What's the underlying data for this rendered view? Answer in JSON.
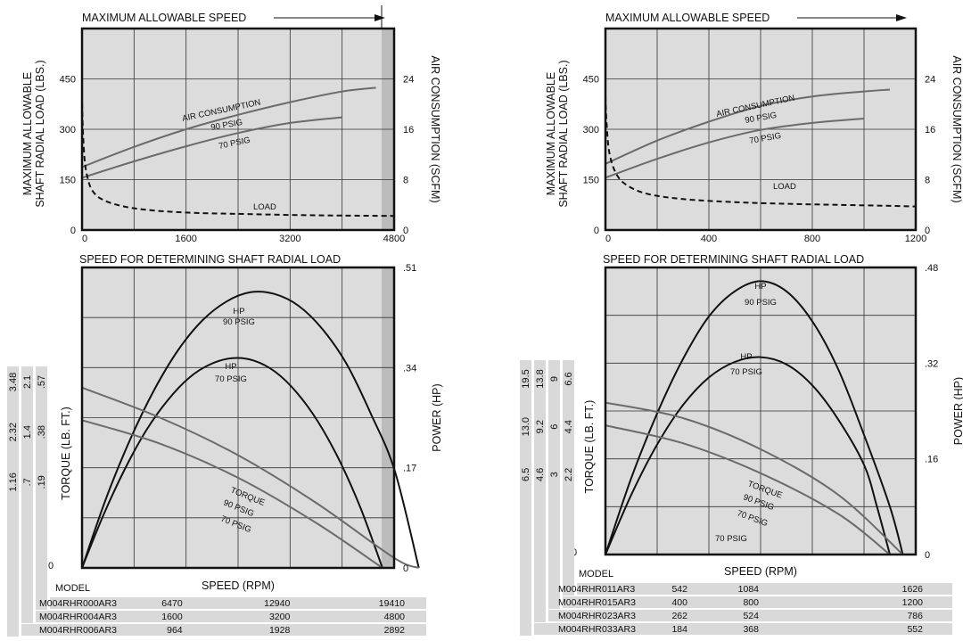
{
  "colors": {
    "plot_bg": "#dcdcdc",
    "gray_zone": "#bcbcbc",
    "grid": "#333333",
    "curve": "#6b6b6b",
    "curve_dark": "#111111",
    "table_bg": "#d9d9d9",
    "ink": "#111111"
  },
  "panels": [
    {
      "top": {
        "header": "MAXIMUM ALLOWABLE SPEED",
        "ylabel_left": [
          "MAXIMUM ALLOWABLE",
          "SHAFT RADIAL LOAD (LBS.)"
        ],
        "ylabel_right": "AIR CONSUMPTION (SCFM)",
        "left_ticks": [
          "0",
          "150",
          "300",
          "450"
        ],
        "right_ticks": [
          "0",
          "8",
          "16",
          "24"
        ],
        "x_ticks": [
          "0",
          "1600",
          "3200",
          "4800"
        ],
        "xlabel": "SPEED FOR DETERMINING SHAFT RADIAL LOAD",
        "labels": {
          "air": "AIR CONSUMPTION",
          "p90": "90 PSIG",
          "p70": "70 PSIG",
          "load": "LOAD"
        }
      },
      "bottom": {
        "ylabel_left": "TORQUE (LB. FT.)",
        "ylabel_right": "POWER (HP)",
        "right_ticks": [
          "0",
          ".17",
          ".34",
          ".51"
        ],
        "zero_label": "0",
        "xlabel": "SPEED (RPM)",
        "labels": {
          "hp90": [
            "HP",
            "90 PSIG"
          ],
          "hp70": [
            "HP",
            "70 PSIG"
          ],
          "torque": "TORQUE",
          "t90": "90 PSIG",
          "t70": "70 PSIG"
        },
        "torque_columns": [
          [
            "1.16",
            "2.32",
            "3.48"
          ],
          [
            ".7",
            "1.4",
            "2.1"
          ],
          [
            ".19",
            ".38",
            ".57"
          ]
        ],
        "model_label": "MODEL",
        "rows": [
          {
            "model": "M004RHR000AR3",
            "v": [
              "6470",
              "12940",
              "19410"
            ]
          },
          {
            "model": "M004RHR004AR3",
            "v": [
              "1600",
              "3200",
              "4800"
            ]
          },
          {
            "model": "M004RHR006AR3",
            "v": [
              "964",
              "1928",
              "2892"
            ]
          }
        ]
      }
    },
    {
      "top": {
        "header": "MAXIMUM ALLOWABLE SPEED",
        "ylabel_left": [
          "MAXIMUM ALLOWABLE",
          "SHAFT RADIAL LOAD (LBS.)"
        ],
        "ylabel_right": "AIR CONSUMPTION (SCFM)",
        "left_ticks": [
          "0",
          "150",
          "300",
          "450"
        ],
        "right_ticks": [
          "0",
          "8",
          "16",
          "24"
        ],
        "x_ticks": [
          "0",
          "400",
          "800",
          "1200"
        ],
        "xlabel": "SPEED FOR DETERMINING SHAFT RADIAL LOAD",
        "labels": {
          "air": "AIR CONSUMPTION",
          "p90": "90 PSIG",
          "p70": "70 PSIG",
          "load": "LOAD"
        }
      },
      "bottom": {
        "ylabel_left": "TORQUE (LB. FT.)",
        "ylabel_right": "POWER (HP)",
        "right_ticks": [
          "0",
          ".16",
          ".32",
          ".48"
        ],
        "zero_label": "0",
        "xlabel": "SPEED (RPM)",
        "labels": {
          "hp90": [
            "HP",
            "90 PSIG"
          ],
          "hp70": [
            "HP",
            "70 PSIG"
          ],
          "torque": "TORQUE",
          "t90": "90 PSIG",
          "t70": "70 PSIG",
          "t70b": "70 PSIG"
        },
        "torque_columns": [
          [
            "6.5",
            "13.0",
            "19.5"
          ],
          [
            "4.6",
            "9.2",
            "13.8"
          ],
          [
            "3",
            "6",
            "9"
          ],
          [
            "2.2",
            "4.4",
            "6.6"
          ]
        ],
        "model_label": "MODEL",
        "rows": [
          {
            "model": "M004RHR011AR3",
            "v": [
              "542",
              "1084",
              "1626"
            ]
          },
          {
            "model": "M004RHR015AR3",
            "v": [
              "400",
              "800",
              "1200"
            ]
          },
          {
            "model": "M004RHR023AR3",
            "v": [
              "262",
              "524",
              "786"
            ]
          },
          {
            "model": "M004RHR033AR3",
            "v": [
              "184",
              "368",
              "552"
            ]
          }
        ]
      }
    }
  ],
  "chart_data": [
    {
      "type": "line",
      "title": "MAXIMUM ALLOWABLE SPEED",
      "xlabel": "SPEED FOR DETERMINING SHAFT RADIAL LOAD",
      "ylabel": "MAXIMUM ALLOWABLE SHAFT RADIAL LOAD (LBS.)",
      "y2label": "AIR CONSUMPTION (SCFM)",
      "xlim": [
        0,
        4800
      ],
      "ylim": [
        0,
        600
      ],
      "y2lim": [
        0,
        32
      ],
      "grid": true,
      "shaded_x_from": 4800,
      "series": [
        {
          "name": "AIR CONSUMPTION 90 PSIG",
          "axis": "right",
          "style": "solid",
          "points": [
            [
              0,
              10
            ],
            [
              800,
              13.2
            ],
            [
              1600,
              16
            ],
            [
              2400,
              18.3
            ],
            [
              3200,
              20.3
            ],
            [
              4000,
              22
            ],
            [
              4520,
              22.6
            ]
          ]
        },
        {
          "name": "70 PSIG",
          "axis": "right",
          "style": "solid",
          "points": [
            [
              0,
              8.3
            ],
            [
              800,
              10.9
            ],
            [
              1600,
              13.3
            ],
            [
              2400,
              15.4
            ],
            [
              3200,
              17
            ],
            [
              4000,
              17.9
            ]
          ]
        },
        {
          "name": "LOAD",
          "axis": "left",
          "style": "dashed",
          "points": [
            [
              0,
              380
            ],
            [
              15,
              290
            ],
            [
              40,
              210
            ],
            [
              80,
              160
            ],
            [
              150,
              120
            ],
            [
              300,
              92
            ],
            [
              600,
              72
            ],
            [
              1000,
              60
            ],
            [
              1600,
              52
            ],
            [
              2400,
              48
            ],
            [
              3200,
              45
            ],
            [
              4000,
              43
            ],
            [
              4800,
              42
            ]
          ]
        }
      ]
    },
    {
      "type": "line",
      "xlabel": "SPEED (RPM)",
      "ylabel": "TORQUE (LB. FT.)",
      "y2label": "POWER (HP)",
      "xlim": [
        0,
        4800
      ],
      "ylim": [
        0,
        6
      ],
      "y2lim": [
        0,
        0.51
      ],
      "grid": true,
      "shaded_x_from": 4800,
      "series": [
        {
          "name": "HP 90 PSIG",
          "axis": "right",
          "style": "solid",
          "points": [
            [
              0,
              0
            ],
            [
              370,
              0.118
            ],
            [
              740,
              0.218
            ],
            [
              1110,
              0.302
            ],
            [
              1480,
              0.37
            ],
            [
              1850,
              0.42
            ],
            [
              2220,
              0.452
            ],
            [
              2590,
              0.468
            ],
            [
              2960,
              0.465
            ],
            [
              3330,
              0.445
            ],
            [
              3700,
              0.405
            ],
            [
              4070,
              0.346
            ],
            [
              4440,
              0.262
            ],
            [
              4810,
              0.165
            ],
            [
              5180,
              0
            ]
          ]
        },
        {
          "name": "HP 70 PSIG",
          "axis": "right",
          "style": "solid",
          "points": [
            [
              0,
              0
            ],
            [
              330,
              0.09
            ],
            [
              660,
              0.168
            ],
            [
              990,
              0.234
            ],
            [
              1320,
              0.285
            ],
            [
              1650,
              0.323
            ],
            [
              1980,
              0.346
            ],
            [
              2310,
              0.356
            ],
            [
              2640,
              0.352
            ],
            [
              2970,
              0.333
            ],
            [
              3300,
              0.298
            ],
            [
              3630,
              0.248
            ],
            [
              3960,
              0.182
            ],
            [
              4290,
              0.1
            ],
            [
              4620,
              0
            ]
          ]
        },
        {
          "name": "TORQUE 90 PSIG",
          "axis": "left",
          "style": "solid",
          "points": [
            [
              0,
              3.6
            ],
            [
              1200,
              3.0
            ],
            [
              2400,
              2.25
            ],
            [
              3600,
              1.3
            ],
            [
              4800,
              0.2
            ],
            [
              5180,
              0
            ]
          ]
        },
        {
          "name": "TORQUE 70 PSIG",
          "axis": "left",
          "style": "solid",
          "points": [
            [
              0,
              2.95
            ],
            [
              1200,
              2.48
            ],
            [
              2400,
              1.8
            ],
            [
              3600,
              0.9
            ],
            [
              4620,
              0
            ]
          ]
        }
      ]
    },
    {
      "type": "line",
      "title": "MAXIMUM ALLOWABLE SPEED",
      "xlabel": "SPEED FOR DETERMINING SHAFT RADIAL LOAD",
      "ylabel": "MAXIMUM ALLOWABLE SHAFT RADIAL LOAD (LBS.)",
      "y2label": "AIR CONSUMPTION (SCFM)",
      "xlim": [
        0,
        1200
      ],
      "ylim": [
        0,
        600
      ],
      "y2lim": [
        0,
        32
      ],
      "grid": true,
      "series": [
        {
          "name": "AIR CONSUMPTION 90 PSIG",
          "axis": "right",
          "style": "solid",
          "points": [
            [
              0,
              10.5
            ],
            [
              200,
              14.2
            ],
            [
              400,
              17.2
            ],
            [
              600,
              19.7
            ],
            [
              800,
              21.2
            ],
            [
              1000,
              22
            ],
            [
              1100,
              22.3
            ]
          ]
        },
        {
          "name": "70 PSIG",
          "axis": "right",
          "style": "solid",
          "points": [
            [
              0,
              8.3
            ],
            [
              200,
              11.3
            ],
            [
              400,
              13.9
            ],
            [
              600,
              15.9
            ],
            [
              800,
              17
            ],
            [
              1000,
              17.7
            ]
          ]
        },
        {
          "name": "LOAD",
          "axis": "left",
          "style": "dashed",
          "points": [
            [
              0,
              400
            ],
            [
              5,
              310
            ],
            [
              15,
              230
            ],
            [
              40,
              170
            ],
            [
              80,
              135
            ],
            [
              160,
              108
            ],
            [
              300,
              92
            ],
            [
              500,
              83
            ],
            [
              700,
              78
            ],
            [
              900,
              75
            ],
            [
              1100,
              72
            ],
            [
              1200,
              70
            ]
          ]
        }
      ]
    },
    {
      "type": "line",
      "xlabel": "SPEED (RPM)",
      "ylabel": "TORQUE (LB. FT.)",
      "y2label": "POWER (HP)",
      "xlim": [
        0,
        1200
      ],
      "ylim": [
        0,
        24
      ],
      "y2lim": [
        0,
        0.48
      ],
      "grid": true,
      "series": [
        {
          "name": "HP 90 PSIG",
          "axis": "right",
          "style": "solid",
          "points": [
            [
              0,
              0
            ],
            [
              100,
              0.128
            ],
            [
              200,
              0.236
            ],
            [
              300,
              0.327
            ],
            [
              400,
              0.398
            ],
            [
              500,
              0.44
            ],
            [
              600,
              0.457
            ],
            [
              700,
              0.44
            ],
            [
              800,
              0.39
            ],
            [
              900,
              0.31
            ],
            [
              1000,
              0.2
            ],
            [
              1100,
              0.08
            ],
            [
              1150,
              0
            ]
          ]
        },
        {
          "name": "HP 70 PSIG",
          "axis": "right",
          "style": "solid",
          "points": [
            [
              0,
              0
            ],
            [
              100,
              0.1
            ],
            [
              200,
              0.184
            ],
            [
              300,
              0.25
            ],
            [
              400,
              0.296
            ],
            [
              500,
              0.322
            ],
            [
              600,
              0.33
            ],
            [
              700,
              0.318
            ],
            [
              800,
              0.283
            ],
            [
              900,
              0.226
            ],
            [
              1000,
              0.15
            ],
            [
              1050,
              0.08
            ],
            [
              1100,
              0
            ]
          ]
        },
        {
          "name": "TORQUE 90 PSIG",
          "axis": "left",
          "style": "solid",
          "points": [
            [
              0,
              12.7
            ],
            [
              300,
              11.4
            ],
            [
              600,
              8.8
            ],
            [
              900,
              5.0
            ],
            [
              1150,
              0
            ]
          ]
        },
        {
          "name": "TORQUE 70 PSIG",
          "axis": "left",
          "style": "solid",
          "points": [
            [
              0,
              10.8
            ],
            [
              300,
              9.3
            ],
            [
              600,
              6.8
            ],
            [
              900,
              3.4
            ],
            [
              1100,
              0
            ]
          ]
        }
      ]
    }
  ]
}
